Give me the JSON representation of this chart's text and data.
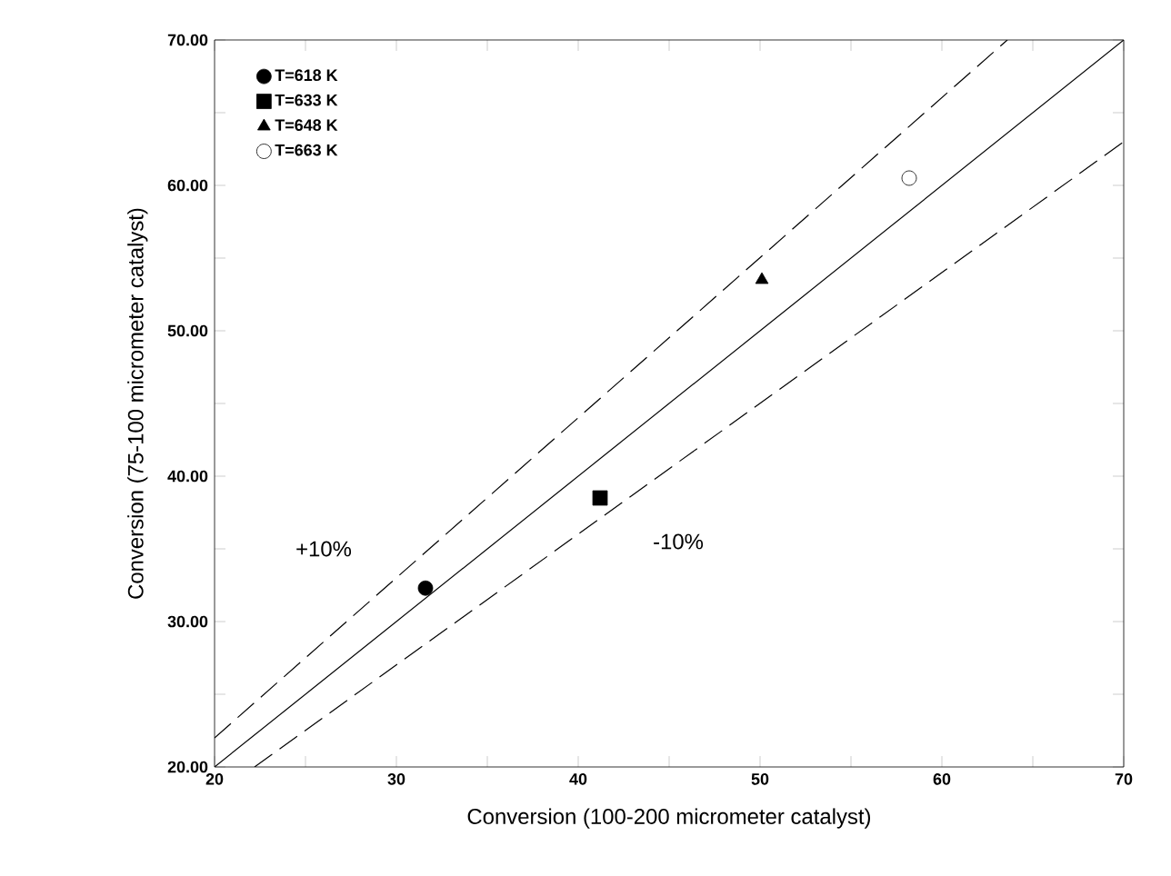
{
  "chart_data": {
    "type": "scatter",
    "xlabel": "Conversion (100-200 micrometer catalyst)",
    "ylabel": "Conversion (75-100 micrometer catalyst)",
    "xlim": [
      20,
      70
    ],
    "ylim": [
      20,
      70
    ],
    "xticks": [
      20,
      {
        "value": 25,
        "label": null
      },
      30,
      {
        "value": 35,
        "label": null
      },
      40,
      {
        "value": 45,
        "label": null
      },
      50,
      {
        "value": 55,
        "label": null
      },
      60,
      {
        "value": 65,
        "label": null
      },
      70
    ],
    "yticks": [
      {
        "value": 20,
        "label": "20.00"
      },
      {
        "value": 25,
        "label": null
      },
      {
        "value": 30,
        "label": "30.00"
      },
      {
        "value": 35,
        "label": null
      },
      {
        "value": 40,
        "label": "40.00"
      },
      {
        "value": 45,
        "label": null
      },
      {
        "value": 50,
        "label": "50.00"
      },
      {
        "value": 55,
        "label": null
      },
      {
        "value": 60,
        "label": "60.00"
      },
      {
        "value": 65,
        "label": null
      },
      {
        "value": 70,
        "label": "70.00"
      }
    ],
    "legend": "top left",
    "grid": false,
    "series": [
      {
        "name": "T=618 K",
        "marker": "circle",
        "color": "#000000",
        "x": [
          31.6
        ],
        "values": [
          32.3
        ]
      },
      {
        "name": "T=633 K",
        "marker": "square",
        "color": "#000000",
        "x": [
          41.2
        ],
        "values": [
          38.5
        ]
      },
      {
        "name": "T=648 K",
        "marker": "triangle",
        "color": "#000000",
        "x": [
          50.1
        ],
        "values": [
          53.5
        ]
      },
      {
        "name": "T=663 K",
        "marker": "circle",
        "color": "#ffffff",
        "x": [
          58.2
        ],
        "values": [
          60.5
        ]
      },
      {
        "type": "line",
        "line_style": "solid",
        "color": "#000000",
        "x": [
          20,
          70
        ],
        "values": [
          20,
          70
        ]
      },
      {
        "type": "line",
        "line_style": "dashed",
        "color": "#000000",
        "x": [
          20,
          63.6
        ],
        "values": [
          22,
          70
        ]
      },
      {
        "type": "line",
        "line_style": "dashed",
        "color": "#000000",
        "x": [
          22.2,
          70
        ],
        "values": [
          20,
          63
        ]
      }
    ],
    "annotations": [
      "+10%",
      "-10%"
    ]
  }
}
